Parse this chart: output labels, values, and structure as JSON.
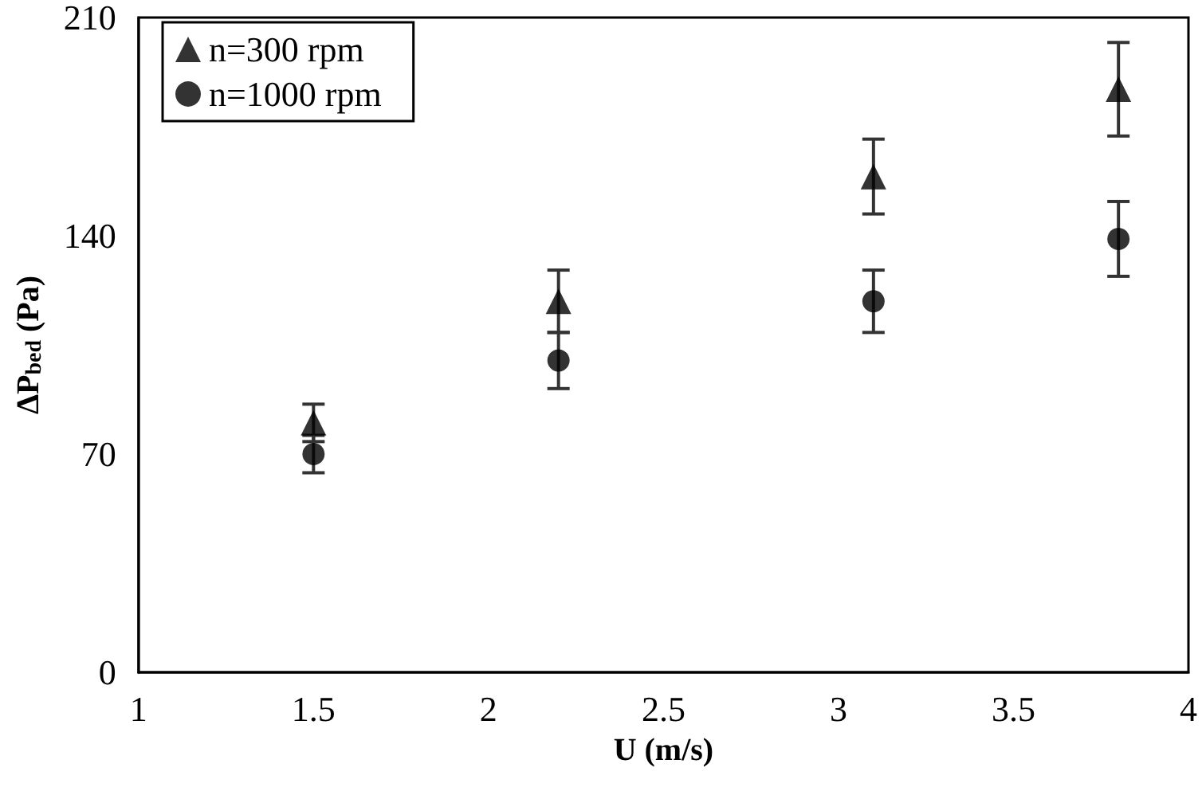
{
  "chart_data": {
    "type": "scatter",
    "xlabel": "U (m/s)",
    "ylabel": "ΔP$_{bed}$ (Pa)",
    "x": [
      1.5,
      2.2,
      3.1,
      3.8
    ],
    "series": [
      {
        "name": "n=300 rpm",
        "color": "#000000",
        "marker": "triangle",
        "values": [
          80,
          119,
          159,
          187
        ],
        "errors": [
          6,
          10,
          12,
          15
        ]
      },
      {
        "name": "n=1000 rpm",
        "color": "#000000",
        "marker": "circle",
        "values": [
          70,
          100,
          119,
          139
        ],
        "errors": [
          6,
          9,
          10,
          12
        ]
      }
    ],
    "xlim": [
      1,
      4
    ],
    "xticks": [
      1,
      1.5,
      2,
      2.5,
      3,
      3.5,
      4
    ],
    "ylim": [
      0,
      210
    ],
    "yticks": [
      0,
      70,
      140,
      210
    ],
    "grid": false,
    "legend": "top left"
  }
}
